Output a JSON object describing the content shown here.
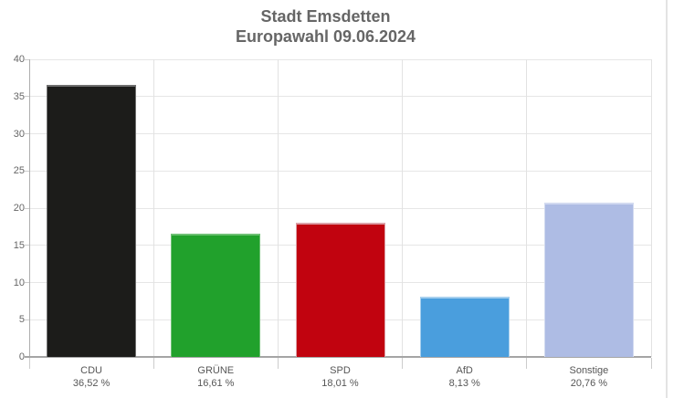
{
  "chart_data": {
    "type": "bar",
    "title": "Stadt Emsdetten",
    "subtitle": "Europawahl 09.06.2024",
    "categories": [
      "CDU",
      "GRÜNE",
      "SPD",
      "AfD",
      "Sonstige"
    ],
    "values": [
      36.52,
      16.61,
      18.01,
      8.13,
      20.76
    ],
    "value_labels": [
      "36,52 %",
      "16,61 %",
      "18,01 %",
      "8,13 %",
      "20,76 %"
    ],
    "bar_colors": [
      "#1c1c1a",
      "#21a12c",
      "#c1030f",
      "#4a9edd",
      "#aebce4"
    ],
    "bar_border_colors": [
      "#6f6f6f",
      "#6ec074",
      "#dca0a7",
      "#a6cfee",
      "#d2daf0"
    ],
    "xlabel": "",
    "ylabel": "",
    "ylim": [
      0,
      40
    ],
    "yticks": [
      0,
      5,
      10,
      15,
      20,
      25,
      30,
      35,
      40
    ],
    "grid": true,
    "legend": false,
    "style_colors": {
      "title_text": "#666666",
      "axis_text": "#666666",
      "category_text": "#565656",
      "gridline": "#e6e6e6",
      "axis_line": "#a5a5a5",
      "background": "#ffffff"
    }
  }
}
